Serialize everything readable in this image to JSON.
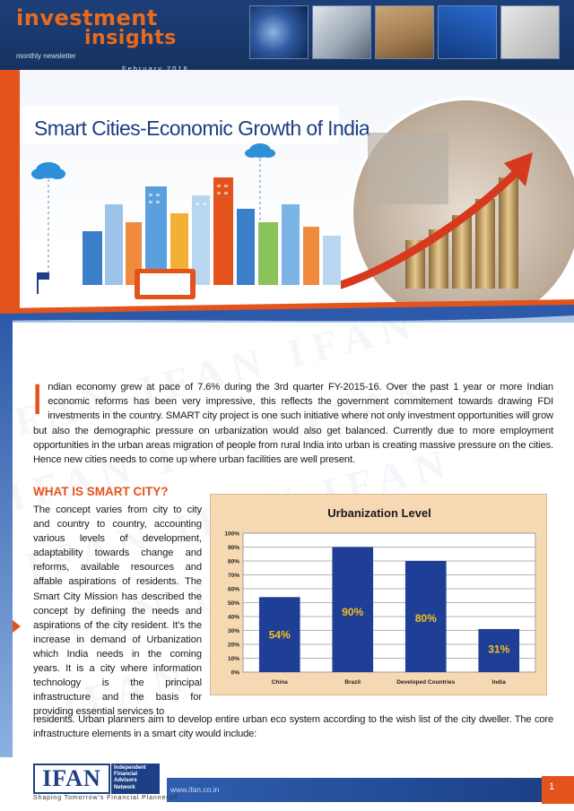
{
  "header": {
    "brand_line1": "investment",
    "brand_line2": "insights",
    "subtitle": "monthly newsletter",
    "date": "February 2016"
  },
  "hero": {
    "title": "Smart Cities-Economic Growth of India"
  },
  "intro": {
    "dropcap": "I",
    "text": "ndian economy grew at pace of 7.6% during the 3rd quarter FY-2015-16. Over the past 1 year or more Indian economic reforms has been very impressive, this reflects  the government commitement towards drawing FDI investments in the country. SMART city project is one such initiative where not only investment opportunities will grow but also the demographic pressure on urbanization would also get balanced. Currently due to more employment opportunities in the urban areas migration of people from rural India into urban is creating massive pressure on the cities. Hence new cities needs to come up where urban facilities are well present."
  },
  "section": {
    "heading": "WHAT IS SMART CITY?",
    "text": "The concept varies from city to city and country to country, accounting various levels of development, adaptability towards change and reforms, available resources and affable aspirations of residents. The Smart City Mission has described the concept by defining the needs and aspirations of the city resident. It's the increase in demand of Urbanization which India needs in the coming years. It is a city where information technology is the principal infrastructure and the basis for providing essential services to",
    "closing": "residents.  Urban planners aim to develop entire urban eco system according to the wish list of the city dweller. The core infrastructure elements in a smart city would include:"
  },
  "chart_data": {
    "type": "bar",
    "title": "Urbanization Level",
    "categories": [
      "China",
      "Brazil",
      "Developed Countries",
      "India"
    ],
    "values": [
      54,
      90,
      80,
      31
    ],
    "data_labels": [
      "54%",
      "90%",
      "80%",
      "31%"
    ],
    "y_ticks": [
      "0%",
      "10%",
      "20%",
      "30%",
      "40%",
      "50%",
      "60%",
      "70%",
      "80%",
      "90%",
      "100%"
    ],
    "ylim": [
      0,
      100
    ],
    "grid": true,
    "bar_color": "#1f3f96",
    "label_color": "#f2c21b",
    "background": "#f6d9b3"
  },
  "footer": {
    "logo_text": "IFAN",
    "logo_side": [
      "Independent",
      "Financial",
      "Advisors",
      "Network"
    ],
    "tagline": "Shaping Tomorrow's Financial Planners®",
    "url": "www.ifan.co.in",
    "page_number": "1"
  },
  "colors": {
    "accent": "#e4531b",
    "navy": "#1d3f85"
  },
  "watermark": "IFAN"
}
